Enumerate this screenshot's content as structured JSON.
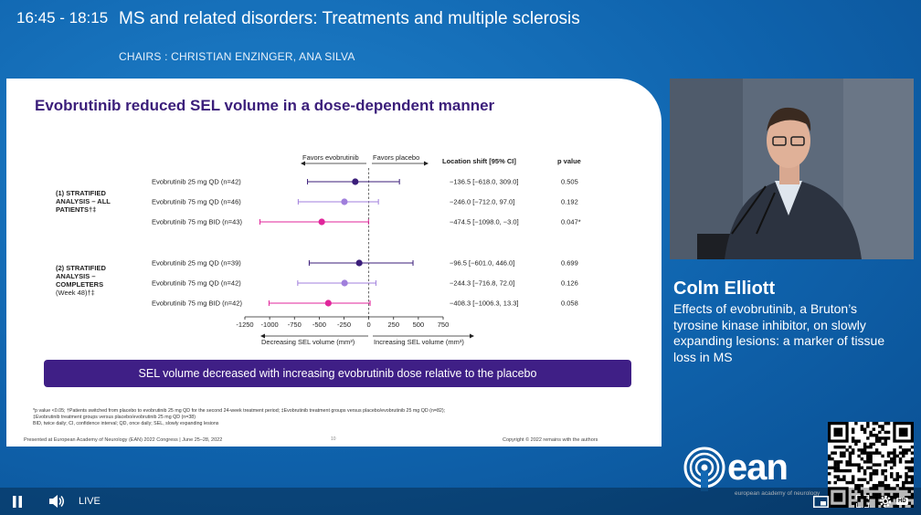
{
  "session": {
    "time": "16:45 - 18:15",
    "title": "MS and related disorders: Treatments and multiple sclerosis",
    "chairs": "CHAIRS : CHRISTIAN ENZINGER, ANA SILVA"
  },
  "slide": {
    "title": "Evobrutinib reduced SEL volume in a dose-dependent manner",
    "favors_left": "Favors evobrutinib",
    "favors_right": "Favors placebo",
    "col_location": "Location shift [95% CI]",
    "col_p": "p value",
    "group1_label": [
      "(1) STRATIFIED",
      "ANALYSIS – ALL",
      "PATIENTS†‡"
    ],
    "group2_label": [
      "(2) STRATIFIED",
      "ANALYSIS –",
      "COMPLETERS",
      "(Week 48)†‡"
    ],
    "xaxis_left_label": "Decreasing SEL volume (mm³)",
    "xaxis_right_label": "Increasing SEL volume (mm³)",
    "banner": "SEL volume decreased with increasing evobrutinib dose relative to the placebo",
    "footnote_1": "*p value <0.05; †Patients switched from placebo to evobrutinib 25 mg QD for the second 24-week treatment period; ‡Evobrutinib treatment groups versus placebo/evobrutinib 25 mg QD (n=82);",
    "footnote_2": "‡Evobrutinib treatment groups versus placebo/evobrutinib 25 mg QD (n=38)",
    "footnote_3": "BID, twice daily; CI, confidence interval; QD, once daily; SEL, slowly expanding lesions",
    "presented_at": "Presented at European Academy of Neurology (EAN) 2022 Congress | June 25–28, 2022",
    "page_number": "10",
    "copyright": "Copyright © 2022 remains with the authors"
  },
  "chart_data": {
    "type": "forest",
    "xlim": [
      -1250,
      750
    ],
    "xticks": [
      "-1250",
      "-1000",
      "-750",
      "-500",
      "-250",
      "0",
      "250",
      "500",
      "750"
    ],
    "rows": [
      {
        "group": 1,
        "label": "Evobrutinib 25 mg QD (n=42)",
        "estimate": -136.5,
        "lower": -618.0,
        "upper": 309.0,
        "ci_text": "−136.5 [−618.0, 309.0]",
        "p": "0.505",
        "color": "#3b1e7a"
      },
      {
        "group": 1,
        "label": "Evobrutinib 75 mg QD (n=46)",
        "estimate": -246.0,
        "lower": -712.0,
        "upper": 97.0,
        "ci_text": "−246.0 [−712.0, 97.0]",
        "p": "0.192",
        "color": "#a07fdc"
      },
      {
        "group": 1,
        "label": "Evobrutinib 75 mg BID (n=43)",
        "estimate": -474.5,
        "lower": -1098.0,
        "upper": -3.0,
        "ci_text": "−474.5 [−1098.0, −3.0]",
        "p": "0.047*",
        "color": "#e0259b"
      },
      {
        "group": 2,
        "label": "Evobrutinib 25 mg QD (n=39)",
        "estimate": -96.5,
        "lower": -601.0,
        "upper": 446.0,
        "ci_text": "−96.5 [−601.0, 446.0]",
        "p": "0.699",
        "color": "#3b1e7a"
      },
      {
        "group": 2,
        "label": "Evobrutinib 75 mg QD (n=42)",
        "estimate": -244.3,
        "lower": -716.8,
        "upper": 72.0,
        "ci_text": "−244.3 [−716.8, 72.0]",
        "p": "0.126",
        "color": "#a07fdc"
      },
      {
        "group": 2,
        "label": "Evobrutinib 75 mg BID (n=42)",
        "estimate": -408.3,
        "lower": -1006.3,
        "upper": 13.3,
        "ci_text": "−408.3 [−1006.3, 13.3]",
        "p": "0.058",
        "color": "#e0259b"
      }
    ]
  },
  "speaker": {
    "name": "Colm Elliott",
    "talk_title": "Effects of evobrutinib, a Bruton’s tyrosine kinase inhibitor, on slowly expanding lesions: a marker of tissue loss in MS"
  },
  "branding": {
    "logo_text": "ean",
    "logo_subtitle": "european academy of neurology"
  },
  "player": {
    "live_label": "LIVE",
    "hd_label": "HD"
  }
}
